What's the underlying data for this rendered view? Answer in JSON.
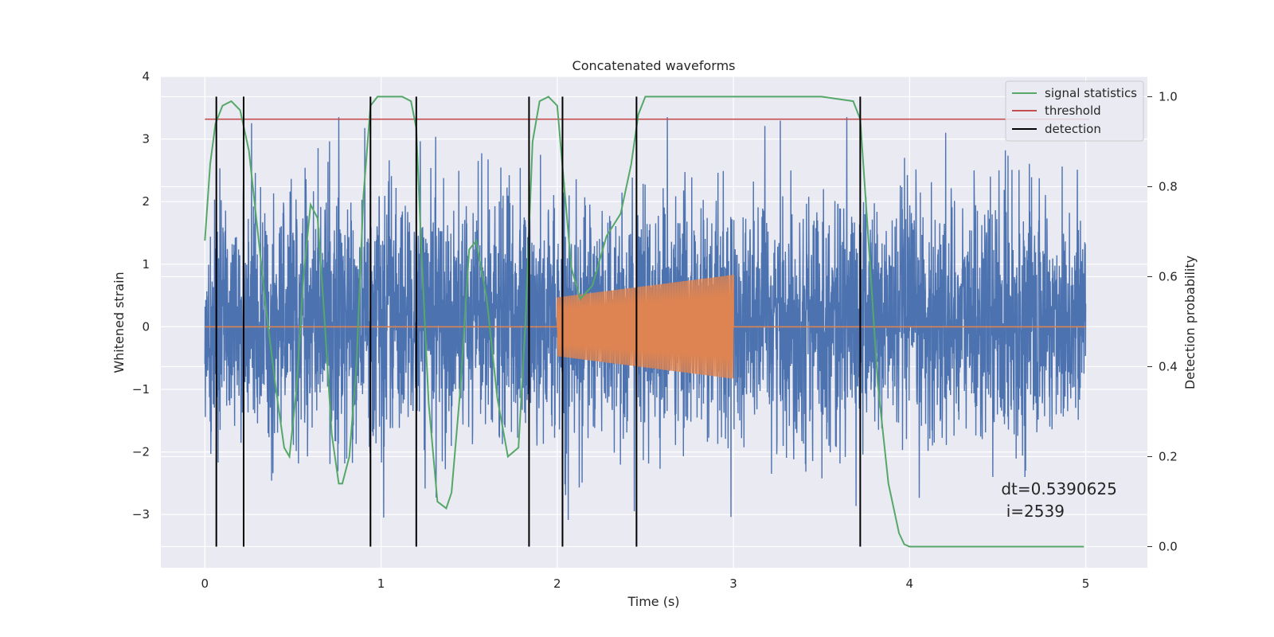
{
  "chart_data": {
    "type": "line",
    "title": "Concatenated waveforms",
    "xlabel": "Time (s)",
    "ylabel_left": "Whitened strain",
    "ylabel_right": "Detection probability",
    "xlim": [
      -0.25,
      5.35
    ],
    "ylim_left": [
      -3.85,
      4.0
    ],
    "ylim_right": [
      -0.047,
      1.045
    ],
    "xticks": [
      0,
      1,
      2,
      3,
      4,
      5
    ],
    "xtick_labels": [
      "0",
      "1",
      "2",
      "3",
      "4",
      "5"
    ],
    "yticks_left": [
      -3,
      -2,
      -1,
      0,
      1,
      2,
      3,
      4
    ],
    "ytick_labels_left": [
      "−3",
      "−2",
      "−1",
      "0",
      "1",
      "2",
      "3",
      "4"
    ],
    "yticks_right": [
      0.0,
      0.2,
      0.4,
      0.6,
      0.8,
      1.0
    ],
    "ytick_labels_right": [
      "0.0",
      "0.2",
      "0.4",
      "0.6",
      "0.8",
      "1.0"
    ],
    "grid": true,
    "legend_position": "top-right",
    "series": [
      {
        "name": "noise",
        "kind": "strain-noise",
        "color": "#4c72b0",
        "x_range": [
          0,
          5
        ],
        "typical_range": [
          -1.8,
          2.0
        ],
        "peak_range": [
          -3.3,
          3.35
        ]
      },
      {
        "name": "injected signal",
        "kind": "chirp",
        "color": "#dd8452",
        "flat_value": 0,
        "x_range": [
          0,
          5
        ],
        "chirp_start": 2.0,
        "chirp_end": 3.0,
        "amplitude_start": 0.47,
        "amplitude_end": 0.83
      },
      {
        "name": "signal statistics",
        "color": "#55a868",
        "axis": "right",
        "x": [
          0.0,
          0.03,
          0.06,
          0.1,
          0.15,
          0.2,
          0.25,
          0.3,
          0.35,
          0.4,
          0.45,
          0.48,
          0.52,
          0.56,
          0.6,
          0.64,
          0.68,
          0.72,
          0.76,
          0.78,
          0.82,
          0.86,
          0.9,
          0.94,
          0.98,
          1.05,
          1.12,
          1.17,
          1.2,
          1.23,
          1.27,
          1.32,
          1.37,
          1.4,
          1.45,
          1.5,
          1.54,
          1.6,
          1.66,
          1.72,
          1.78,
          1.82,
          1.86,
          1.9,
          1.95,
          2.0,
          2.04,
          2.08,
          2.13,
          2.2,
          2.28,
          2.36,
          2.42,
          2.46,
          2.5,
          2.6,
          3.0,
          3.5,
          3.68,
          3.72,
          3.76,
          3.82,
          3.88,
          3.94,
          3.97,
          4.0,
          4.5,
          4.99
        ],
        "y": [
          0.68,
          0.85,
          0.94,
          0.98,
          0.99,
          0.97,
          0.88,
          0.7,
          0.52,
          0.36,
          0.22,
          0.2,
          0.35,
          0.6,
          0.76,
          0.73,
          0.5,
          0.25,
          0.14,
          0.14,
          0.2,
          0.4,
          0.78,
          0.98,
          1.0,
          1.0,
          1.0,
          0.99,
          0.93,
          0.65,
          0.32,
          0.1,
          0.085,
          0.12,
          0.35,
          0.66,
          0.68,
          0.55,
          0.33,
          0.2,
          0.22,
          0.5,
          0.9,
          0.99,
          1.0,
          0.98,
          0.8,
          0.62,
          0.55,
          0.58,
          0.69,
          0.74,
          0.85,
          0.96,
          1.0,
          1.0,
          1.0,
          1.0,
          0.99,
          0.95,
          0.72,
          0.36,
          0.14,
          0.03,
          0.005,
          0.0,
          0.0,
          0.0
        ]
      },
      {
        "name": "threshold",
        "color": "#c44e52",
        "axis": "right",
        "x": [
          0,
          5.02
        ],
        "y": [
          0.95,
          0.95
        ]
      }
    ],
    "detections": {
      "name": "detection",
      "color": "#000000",
      "x": [
        0.065,
        0.22,
        0.94,
        1.2,
        1.84,
        2.03,
        2.45,
        3.72
      ],
      "y_range_right": [
        0.0,
        1.0
      ]
    },
    "legend": [
      {
        "label": "signal statistics",
        "color": "#55a868"
      },
      {
        "label": "threshold",
        "color": "#c44e52"
      },
      {
        "label": "detection",
        "color": "#000000"
      }
    ],
    "annotation": {
      "line1": "dt=0.5390625",
      "line2": " i=2539",
      "x": 4.52,
      "y": -2.68
    }
  },
  "colors": {
    "plot_background": "#eaeaf2",
    "grid": "#ffffff",
    "text": "#262626"
  }
}
